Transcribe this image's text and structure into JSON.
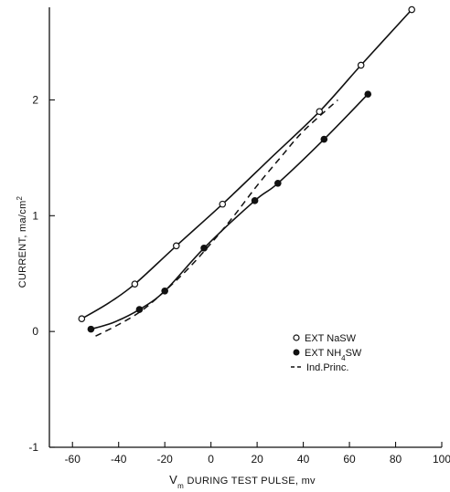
{
  "chart_data": {
    "type": "scatter",
    "title": "",
    "xlabel": "V",
    "xlabel_sub": "m",
    "xlabel_rest": " DURING TEST PULSE, mv",
    "ylabel": "CURRENT, ma/cm",
    "ylabel_sup": "2",
    "xlim": [
      -70,
      100
    ],
    "ylim": [
      -1,
      2.8
    ],
    "xticks": [
      -60,
      -40,
      -20,
      0,
      20,
      40,
      60,
      80,
      100
    ],
    "yticks": [
      -1,
      0,
      1,
      2
    ],
    "xtick_labels": [
      "-60",
      "-40",
      "-20",
      "0",
      "20",
      "40",
      "60",
      "80",
      "100"
    ],
    "ytick_labels": [
      "-1",
      "0",
      "1",
      "2"
    ],
    "legend_position": "right",
    "series": [
      {
        "name": "EXT NaSW",
        "marker": "open-circle",
        "points": [
          {
            "x": -56,
            "y": 0.11
          },
          {
            "x": -33,
            "y": 0.41
          },
          {
            "x": -15,
            "y": 0.74
          },
          {
            "x": 5,
            "y": 1.1
          },
          {
            "x": 47,
            "y": 1.9
          },
          {
            "x": 65,
            "y": 2.3
          },
          {
            "x": 87,
            "y": 2.78
          }
        ],
        "curve": [
          {
            "x": -56,
            "y": 0.11
          },
          {
            "x": -44,
            "y": 0.25
          },
          {
            "x": -33,
            "y": 0.41
          },
          {
            "x": -15,
            "y": 0.74
          },
          {
            "x": 5,
            "y": 1.1
          },
          {
            "x": 25,
            "y": 1.48
          },
          {
            "x": 47,
            "y": 1.9
          },
          {
            "x": 65,
            "y": 2.3
          },
          {
            "x": 87,
            "y": 2.78
          }
        ]
      },
      {
        "name": "EXT NH4SW",
        "name_prefix": "EXT NH",
        "name_sub": "4",
        "name_suffix": "SW",
        "marker": "filled-circle",
        "points": [
          {
            "x": -52,
            "y": 0.02
          },
          {
            "x": -31,
            "y": 0.19
          },
          {
            "x": -20,
            "y": 0.35
          },
          {
            "x": -3,
            "y": 0.72
          },
          {
            "x": 19,
            "y": 1.13
          },
          {
            "x": 29,
            "y": 1.28
          },
          {
            "x": 49,
            "y": 1.66
          },
          {
            "x": 68,
            "y": 2.05
          }
        ],
        "curve": [
          {
            "x": -52,
            "y": 0.02
          },
          {
            "x": -42,
            "y": 0.08
          },
          {
            "x": -31,
            "y": 0.19
          },
          {
            "x": -20,
            "y": 0.35
          },
          {
            "x": -3,
            "y": 0.72
          },
          {
            "x": 19,
            "y": 1.13
          },
          {
            "x": 29,
            "y": 1.28
          },
          {
            "x": 49,
            "y": 1.66
          },
          {
            "x": 68,
            "y": 2.05
          }
        ]
      },
      {
        "name": "Ind.Princ.",
        "marker": "dashed-line",
        "points": [],
        "curve": [
          {
            "x": -50,
            "y": -0.04
          },
          {
            "x": -40,
            "y": 0.06
          },
          {
            "x": -30,
            "y": 0.18
          },
          {
            "x": -20,
            "y": 0.35
          },
          {
            "x": -10,
            "y": 0.54
          },
          {
            "x": 0,
            "y": 0.76
          },
          {
            "x": 10,
            "y": 1.0
          },
          {
            "x": 20,
            "y": 1.26
          },
          {
            "x": 30,
            "y": 1.5
          },
          {
            "x": 40,
            "y": 1.73
          },
          {
            "x": 55,
            "y": 2.0
          }
        ]
      }
    ]
  }
}
